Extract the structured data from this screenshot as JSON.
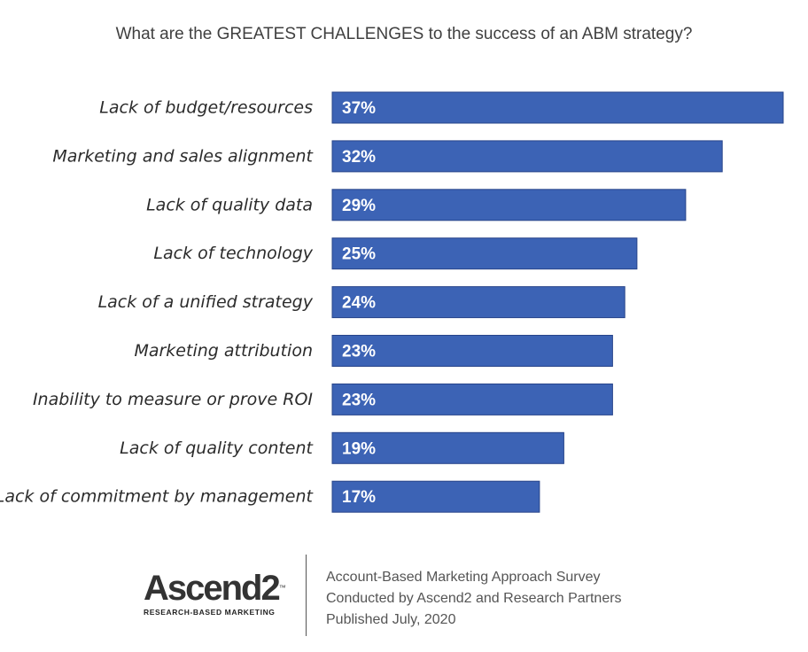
{
  "chart_data": {
    "type": "bar",
    "orientation": "horizontal",
    "title": "What are the GREATEST CHALLENGES to the success of an ABM strategy?",
    "categories": [
      "Lack of budget/resources",
      "Marketing and sales alignment",
      "Lack of quality data",
      "Lack of technology",
      "Lack of a unified strategy",
      "Marketing attribution",
      "Inability to measure or prove ROI",
      "Lack of quality content",
      "Lack of commitment by management"
    ],
    "values": [
      37,
      32,
      29,
      25,
      24,
      23,
      23,
      19,
      17
    ],
    "data_labels": [
      "37%",
      "32%",
      "29%",
      "25%",
      "24%",
      "23%",
      "23%",
      "19%",
      "17%"
    ],
    "unit": "%",
    "xlim": [
      0,
      37
    ],
    "grid": false,
    "legend": "none",
    "bar_color": "#3c63b5"
  },
  "footer": {
    "logo_text": "Ascend2",
    "logo_tm": "™",
    "logo_tagline": "RESEARCH-BASED MARKETING",
    "survey_lines": [
      "Account-Based Marketing Approach Survey",
      "Conducted by Ascend2 and Research Partners",
      "Published July, 2020"
    ]
  }
}
